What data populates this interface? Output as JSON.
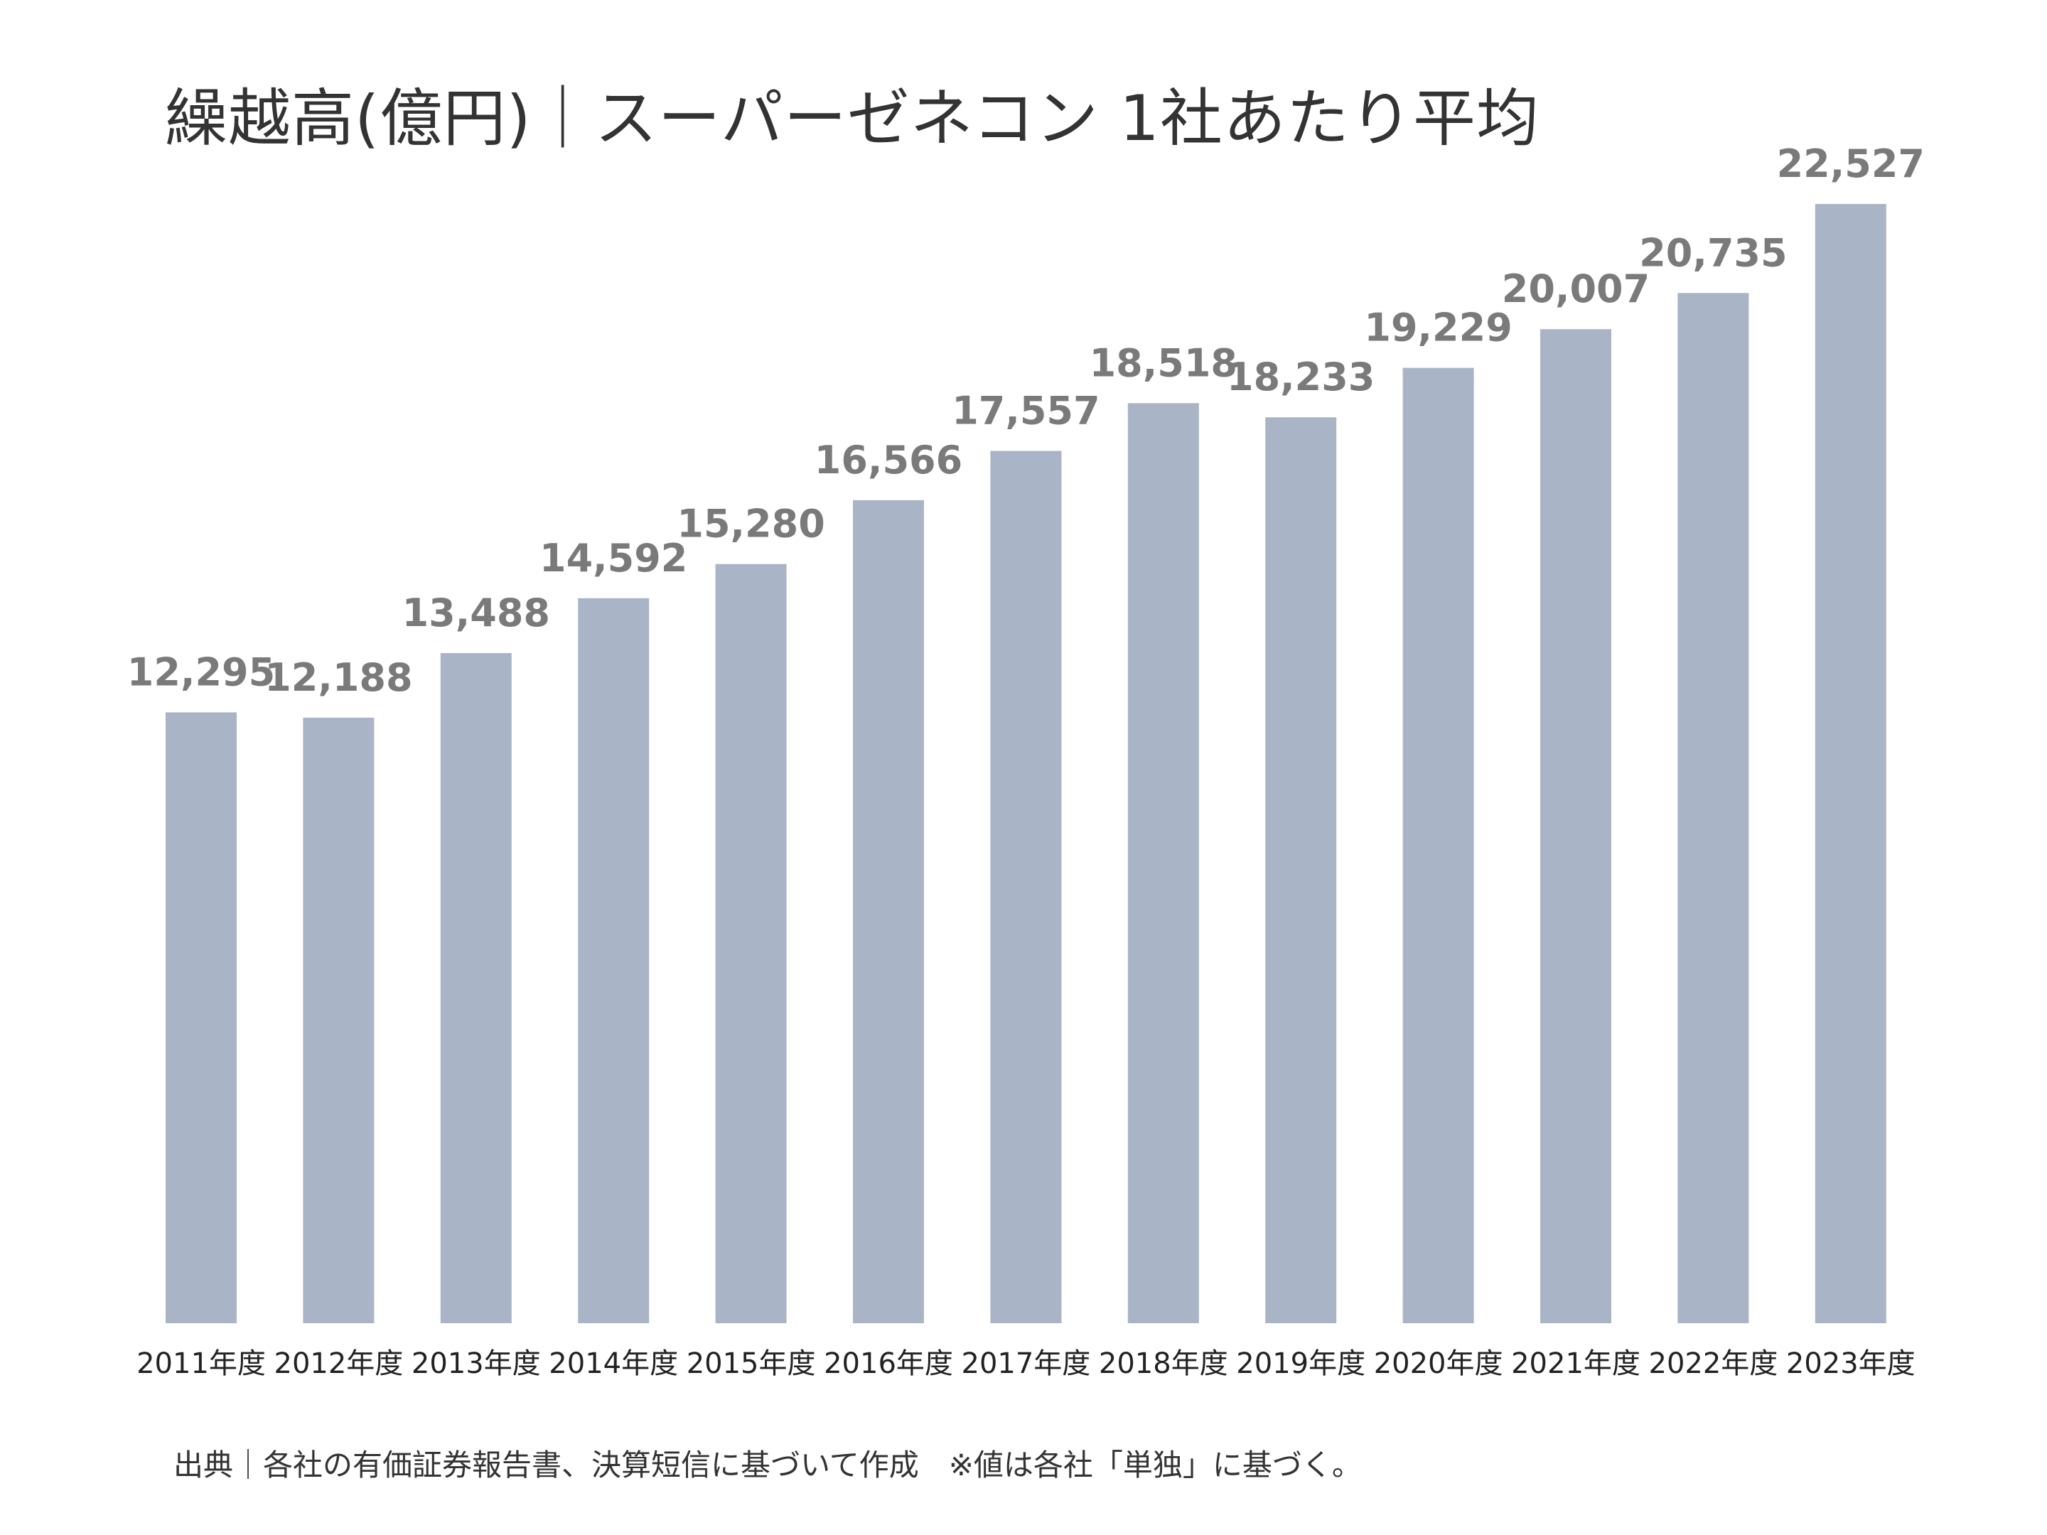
{
  "chart_data": {
    "type": "bar",
    "title": "繰越高(億円)｜スーパーゼネコン 1社あたり平均",
    "categories": [
      "2011年度",
      "2012年度",
      "2013年度",
      "2014年度",
      "2015年度",
      "2016年度",
      "2017年度",
      "2018年度",
      "2019年度",
      "2020年度",
      "2021年度",
      "2022年度",
      "2023年度"
    ],
    "values": [
      12295,
      12188,
      13488,
      14592,
      15280,
      16566,
      17557,
      18518,
      18233,
      19229,
      20007,
      20735,
      22527
    ],
    "value_labels": [
      "12,295",
      "12,188",
      "13,488",
      "14,592",
      "15,280",
      "16,566",
      "17,557",
      "18,518",
      "18,233",
      "19,229",
      "20,007",
      "20,735",
      "22,527"
    ],
    "ylim": [
      0,
      22527
    ],
    "grid": false,
    "legend": "none",
    "bar_color": "#a9b5c7",
    "label_color": "#7a7a7a",
    "footnote": "出典｜各社の有価証券報告書、決算短信に基づいて作成　※値は各社「単独」に基づく。"
  }
}
